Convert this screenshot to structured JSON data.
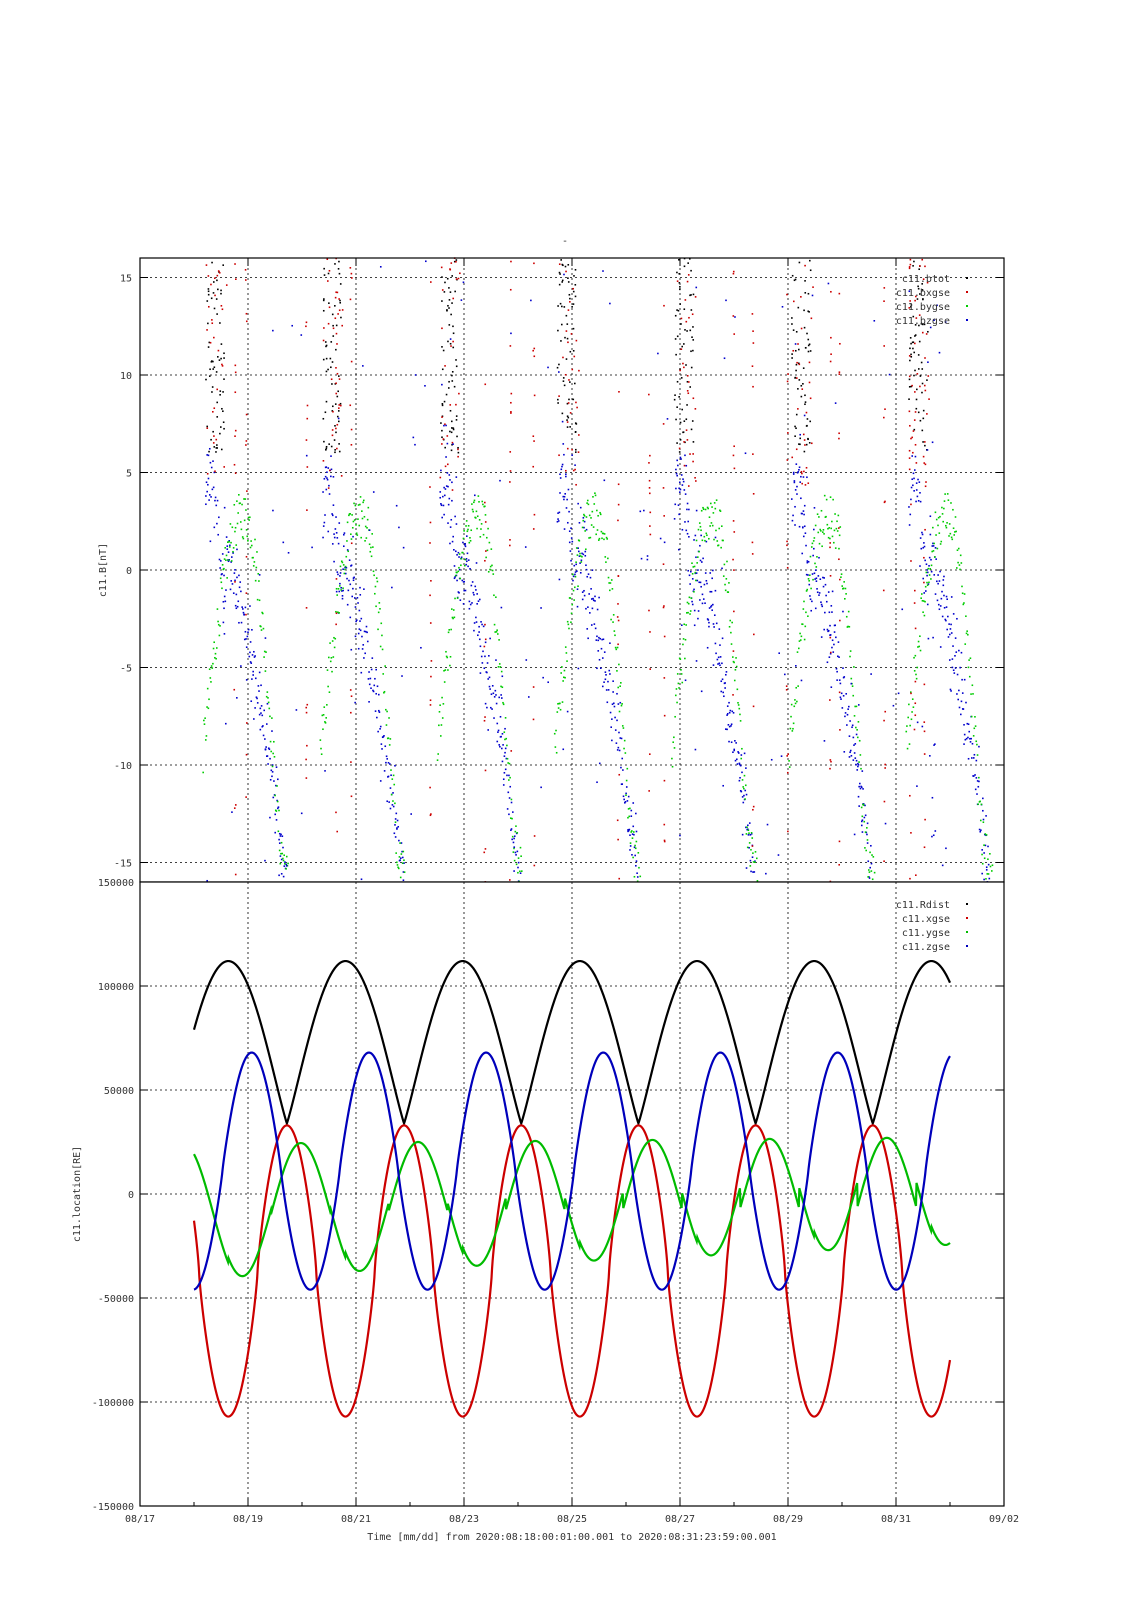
{
  "page_title": "-",
  "x_axis": {
    "label": "Time [mm/dd]  from 2020:08:18:00:01:00.001  to  2020:08:31:23:59:00.001",
    "ticks": [
      "08/17",
      "08/19",
      "08/21",
      "08/23",
      "08/25",
      "08/27",
      "08/29",
      "08/31",
      "09/02"
    ],
    "range": [
      "08/17",
      "09/02"
    ]
  },
  "chart_data": [
    {
      "type": "scatter",
      "ylabel": "c11.B[nT]",
      "ylim": [
        -16,
        16
      ],
      "yticks": [
        -15,
        -10,
        -5,
        0,
        5,
        10,
        15
      ],
      "grid": true,
      "legend_placement": "top-right",
      "x_units": "days since 2020-08-17 00:00",
      "series": [
        {
          "name": "c11.btot",
          "color": "#000000"
        },
        {
          "name": "c11.bxgse",
          "color": "#cc0000"
        },
        {
          "name": "c11.bygse",
          "color": "#00cc00"
        },
        {
          "name": "c11.bzgse",
          "color": "#0000cc"
        }
      ]
    },
    {
      "type": "line",
      "ylabel": "c11.location[RE]",
      "ylim": [
        -150000,
        150000
      ],
      "yticks": [
        "-150000",
        "-100000",
        "-50000",
        "0",
        "50000",
        "100000",
        "150000"
      ],
      "grid": true,
      "legend_placement": "top-right",
      "x_units": "days since 2020-08-17 00:00",
      "x_range": [
        1.0,
        15.0
      ],
      "orbit_period_days": 2.17,
      "series": [
        {
          "name": "c11.Rdist",
          "color": "#000000",
          "max": 112000,
          "min": 34000
        },
        {
          "name": "c11.xgse",
          "color": "#cc0000",
          "max": 33000,
          "min": -107000
        },
        {
          "name": "c11.ygse",
          "color": "#00bb00",
          "max": 24000,
          "min": -42000
        },
        {
          "name": "c11.zgse",
          "color": "#0000bb",
          "max": 68000,
          "min": -46000
        }
      ]
    }
  ]
}
